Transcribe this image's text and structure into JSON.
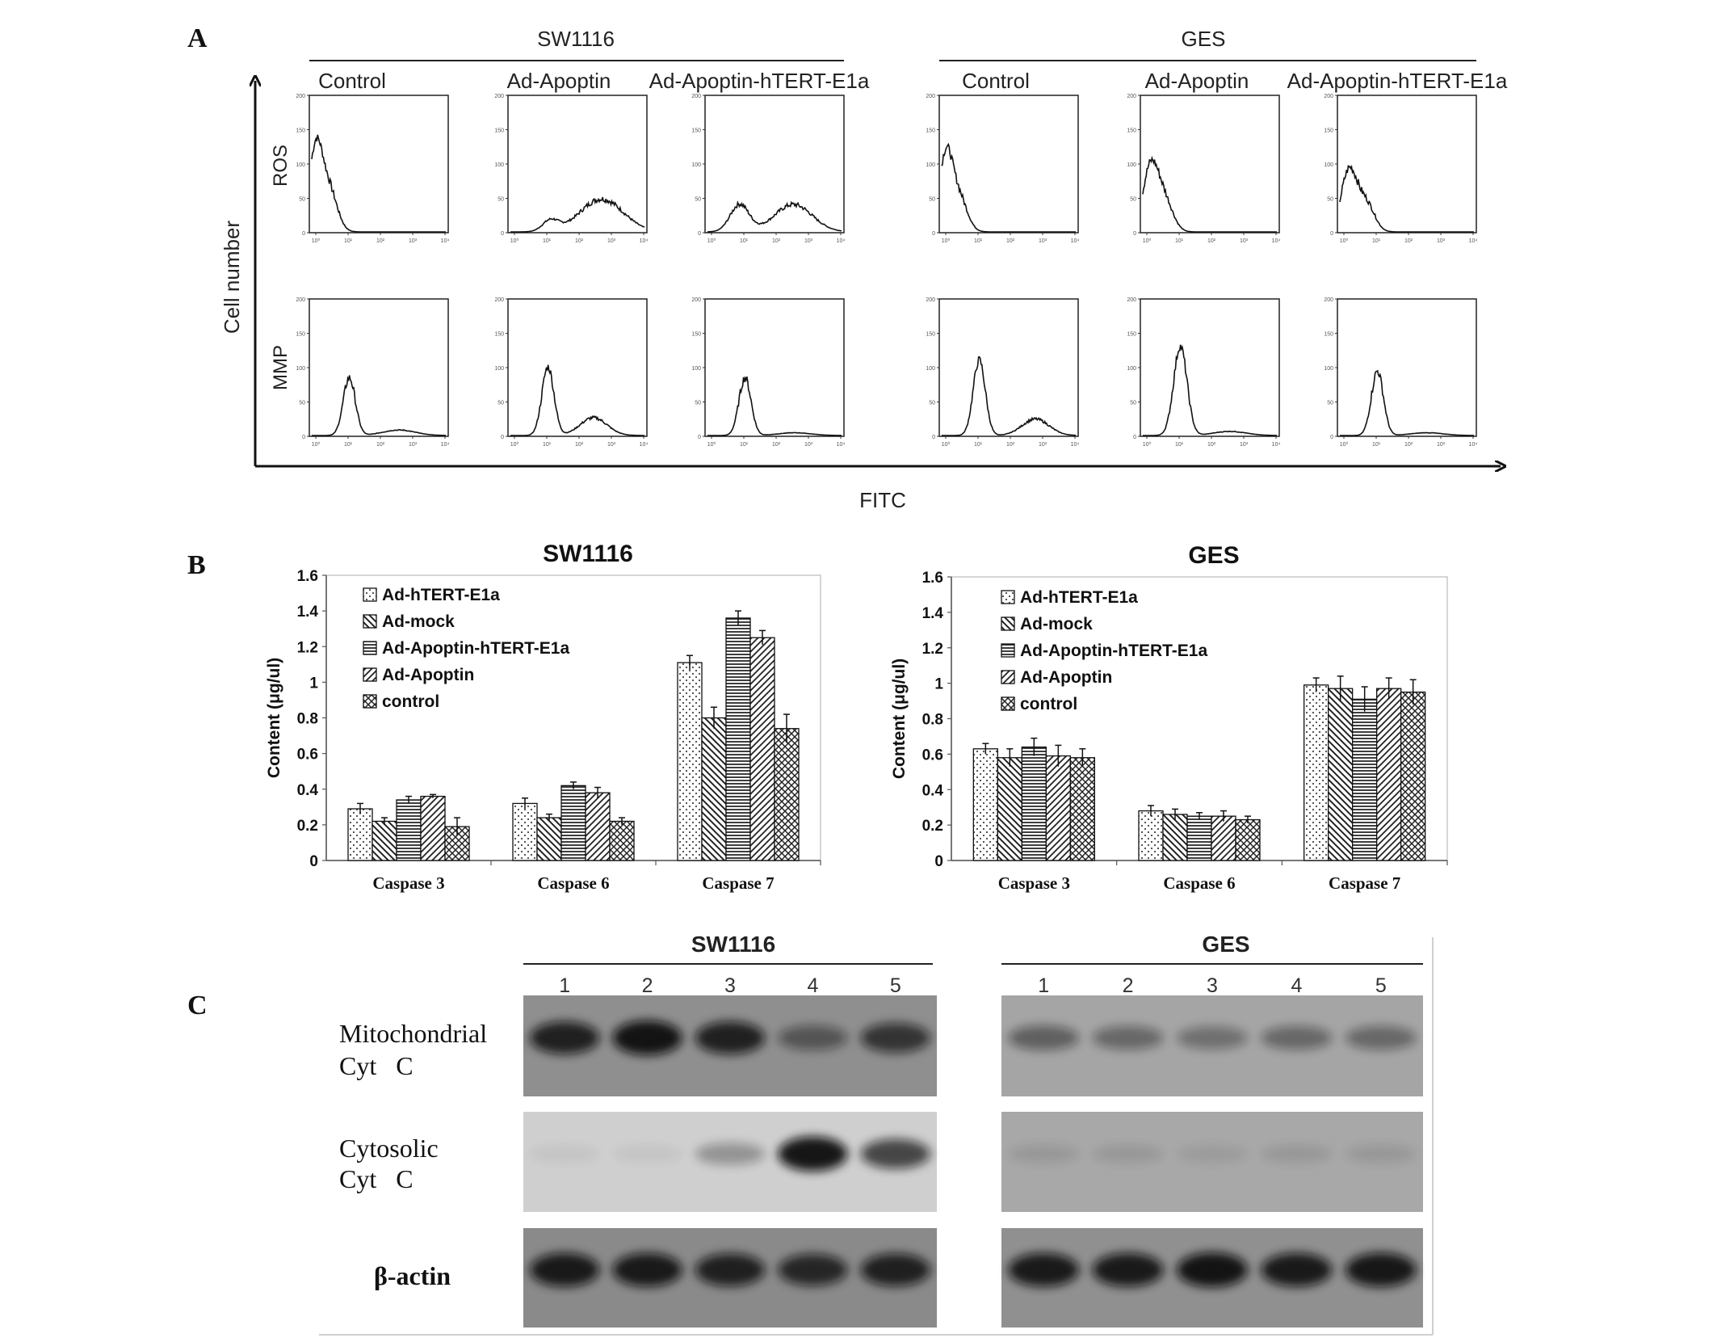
{
  "panel_a": {
    "letter": "A",
    "y_axis_label": "Cell number",
    "x_axis_label": "FITC",
    "row_labels": [
      "ROS",
      "MMP"
    ],
    "groups": [
      {
        "name": "SW1116",
        "columns": [
          "Control",
          "Ad-Apoptin",
          "Ad-Apoptin-hTERT-E1a"
        ]
      },
      {
        "name": "GES",
        "columns": [
          "Control",
          "Ad-Apoptin",
          "Ad-Apoptin-hTERT-E1a"
        ]
      }
    ],
    "histogram_y_ticks": [
      "200",
      "150",
      "100",
      "50",
      "0"
    ],
    "histogram_x_ticks": [
      "10⁰",
      "10¹",
      "10²",
      "10³",
      "10⁴"
    ],
    "histogram_shapes": {
      "ROS": [
        [
          {
            "c": 0.03,
            "h": 0.6,
            "w": 0.05
          },
          {
            "c": 0.13,
            "h": 0.3,
            "w": 0.06
          }
        ],
        [
          {
            "c": 0.3,
            "h": 0.08,
            "w": 0.06
          },
          {
            "c": 0.68,
            "h": 0.24,
            "w": 0.16
          }
        ],
        [
          {
            "c": 0.24,
            "h": 0.2,
            "w": 0.07
          },
          {
            "c": 0.64,
            "h": 0.2,
            "w": 0.14
          }
        ],
        [
          {
            "c": 0.03,
            "h": 0.55,
            "w": 0.05
          },
          {
            "c": 0.13,
            "h": 0.25,
            "w": 0.06
          }
        ],
        [
          {
            "c": 0.06,
            "h": 0.48,
            "w": 0.06
          },
          {
            "c": 0.17,
            "h": 0.2,
            "w": 0.06
          }
        ],
        [
          {
            "c": 0.07,
            "h": 0.45,
            "w": 0.06
          },
          {
            "c": 0.2,
            "h": 0.2,
            "w": 0.06
          }
        ]
      ],
      "MMP": [
        [
          {
            "c": 0.28,
            "h": 0.42,
            "w": 0.045
          },
          {
            "c": 0.65,
            "h": 0.04,
            "w": 0.12
          }
        ],
        [
          {
            "c": 0.28,
            "h": 0.5,
            "w": 0.045
          },
          {
            "c": 0.62,
            "h": 0.13,
            "w": 0.1
          }
        ],
        [
          {
            "c": 0.28,
            "h": 0.42,
            "w": 0.045
          },
          {
            "c": 0.65,
            "h": 0.02,
            "w": 0.12
          }
        ],
        [
          {
            "c": 0.28,
            "h": 0.55,
            "w": 0.045
          },
          {
            "c": 0.7,
            "h": 0.12,
            "w": 0.1
          }
        ],
        [
          {
            "c": 0.28,
            "h": 0.65,
            "w": 0.05
          },
          {
            "c": 0.65,
            "h": 0.03,
            "w": 0.12
          }
        ],
        [
          {
            "c": 0.28,
            "h": 0.47,
            "w": 0.045
          },
          {
            "c": 0.65,
            "h": 0.02,
            "w": 0.12
          }
        ]
      ]
    }
  },
  "panel_b": {
    "letter": "B",
    "chart_data": [
      {
        "type": "bar",
        "title": "SW1116",
        "ylabel": "Content (μg/ul)",
        "xlabel": "",
        "ylim": [
          0,
          1.6
        ],
        "yticks": [
          "0",
          "0.2",
          "0.4",
          "0.6",
          "0.8",
          "1",
          "1.2",
          "1.4",
          "1.6"
        ],
        "categories": [
          "Caspase 3",
          "Caspase 6",
          "Caspase 7"
        ],
        "legend_position": "top-left",
        "grid": false,
        "series": [
          {
            "name": "Ad-hTERT-E1a",
            "pattern": "dots",
            "values": [
              0.29,
              0.32,
              1.11
            ],
            "errors": [
              0.03,
              0.03,
              0.04
            ]
          },
          {
            "name": "Ad-mock",
            "pattern": "back-diag",
            "values": [
              0.22,
              0.24,
              0.8
            ],
            "errors": [
              0.02,
              0.02,
              0.06
            ]
          },
          {
            "name": "Ad-Apoptin-hTERT-E1a",
            "pattern": "horizontal",
            "values": [
              0.34,
              0.42,
              1.36
            ],
            "errors": [
              0.02,
              0.02,
              0.04
            ]
          },
          {
            "name": "Ad-Apoptin",
            "pattern": "fwd-diag",
            "values": [
              0.36,
              0.38,
              1.25
            ],
            "errors": [
              0.01,
              0.03,
              0.04
            ]
          },
          {
            "name": "control",
            "pattern": "cross",
            "values": [
              0.19,
              0.22,
              0.74
            ],
            "errors": [
              0.05,
              0.02,
              0.08
            ]
          }
        ]
      },
      {
        "type": "bar",
        "title": "GES",
        "ylabel": "Content (μg/ul)",
        "xlabel": "",
        "ylim": [
          0,
          1.6
        ],
        "yticks": [
          "0",
          "0.2",
          "0.4",
          "0.6",
          "0.8",
          "1",
          "1.2",
          "1.4",
          "1.6"
        ],
        "categories": [
          "Caspase 3",
          "Caspase 6",
          "Caspase 7"
        ],
        "legend_position": "top-left",
        "grid": false,
        "series": [
          {
            "name": "Ad-hTERT-E1a",
            "pattern": "dots",
            "values": [
              0.63,
              0.28,
              0.99
            ],
            "errors": [
              0.03,
              0.03,
              0.04
            ]
          },
          {
            "name": "Ad-mock",
            "pattern": "back-diag",
            "values": [
              0.58,
              0.26,
              0.97
            ],
            "errors": [
              0.05,
              0.03,
              0.07
            ]
          },
          {
            "name": "Ad-Apoptin-hTERT-E1a",
            "pattern": "horizontal",
            "values": [
              0.64,
              0.25,
              0.91
            ],
            "errors": [
              0.05,
              0.02,
              0.07
            ]
          },
          {
            "name": "Ad-Apoptin",
            "pattern": "fwd-diag",
            "values": [
              0.59,
              0.25,
              0.97
            ],
            "errors": [
              0.06,
              0.03,
              0.06
            ]
          },
          {
            "name": "control",
            "pattern": "cross",
            "values": [
              0.58,
              0.23,
              0.95
            ],
            "errors": [
              0.05,
              0.02,
              0.07
            ]
          }
        ]
      }
    ]
  },
  "panel_c": {
    "letter": "C",
    "groups": [
      {
        "name": "SW1116",
        "lanes": [
          "1",
          "2",
          "3",
          "4",
          "5"
        ],
        "band_intensity": {
          "mito": [
            0.85,
            0.95,
            0.85,
            0.45,
            0.7
          ],
          "cyto": [
            0.05,
            0.05,
            0.3,
            0.95,
            0.7
          ],
          "actin": [
            0.9,
            0.9,
            0.85,
            0.8,
            0.85
          ]
        },
        "background": {
          "mito": "#8f8f8f",
          "cyto": "#cfcfcf",
          "actin": "#8a8a8a"
        }
      },
      {
        "name": "GES",
        "lanes": [
          "1",
          "2",
          "3",
          "4",
          "5"
        ],
        "band_intensity": {
          "mito": [
            0.45,
            0.4,
            0.35,
            0.4,
            0.4
          ],
          "cyto": [
            0.1,
            0.1,
            0.08,
            0.1,
            0.1
          ],
          "actin": [
            0.9,
            0.9,
            0.95,
            0.9,
            0.92
          ]
        },
        "background": {
          "mito": "#a5a5a5",
          "cyto": "#a8a8a8",
          "actin": "#909090"
        }
      }
    ],
    "row_labels": [
      {
        "line1": "Mitochondrial",
        "line2": "Cyt   C"
      },
      {
        "line1": "Cytosolic",
        "line2": "Cyt   C"
      },
      {
        "line1": "β-actin",
        "line2": ""
      }
    ]
  }
}
